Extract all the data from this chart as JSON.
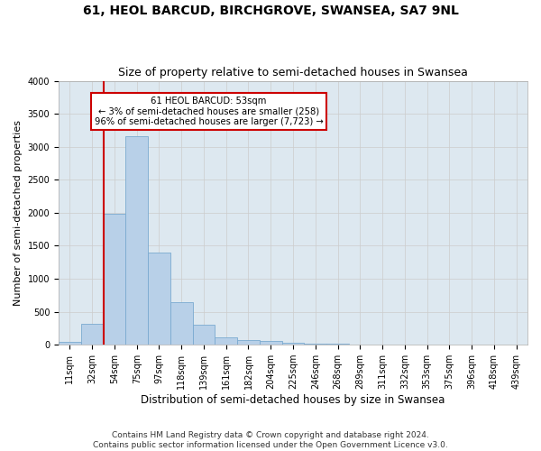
{
  "title": "61, HEOL BARCUD, BIRCHGROVE, SWANSEA, SA7 9NL",
  "subtitle": "Size of property relative to semi-detached houses in Swansea",
  "xlabel": "Distribution of semi-detached houses by size in Swansea",
  "ylabel": "Number of semi-detached properties",
  "bar_labels": [
    "11sqm",
    "32sqm",
    "54sqm",
    "75sqm",
    "97sqm",
    "118sqm",
    "139sqm",
    "161sqm",
    "182sqm",
    "204sqm",
    "225sqm",
    "246sqm",
    "268sqm",
    "289sqm",
    "311sqm",
    "332sqm",
    "353sqm",
    "375sqm",
    "396sqm",
    "418sqm",
    "439sqm"
  ],
  "bar_values": [
    50,
    320,
    1980,
    3160,
    1400,
    640,
    300,
    110,
    65,
    55,
    35,
    15,
    10,
    5,
    5,
    3,
    2,
    2,
    1,
    1,
    1
  ],
  "bar_color": "#b8d0e8",
  "bar_edge_color": "#7aaad0",
  "annotation_text": "61 HEOL BARCUD: 53sqm\n← 3% of semi-detached houses are smaller (258)\n96% of semi-detached houses are larger (7,723) →",
  "annotation_box_color": "#ffffff",
  "annotation_box_edge_color": "#cc0000",
  "vline_color": "#cc0000",
  "ylim": [
    0,
    4000
  ],
  "yticks": [
    0,
    500,
    1000,
    1500,
    2000,
    2500,
    3000,
    3500,
    4000
  ],
  "grid_color": "#cccccc",
  "bg_color": "#dde8f0",
  "fig_bg_color": "#ffffff",
  "footer": "Contains HM Land Registry data © Crown copyright and database right 2024.\nContains public sector information licensed under the Open Government Licence v3.0.",
  "title_fontsize": 10,
  "subtitle_fontsize": 9,
  "xlabel_fontsize": 8.5,
  "ylabel_fontsize": 8,
  "tick_fontsize": 7,
  "footer_fontsize": 6.5
}
